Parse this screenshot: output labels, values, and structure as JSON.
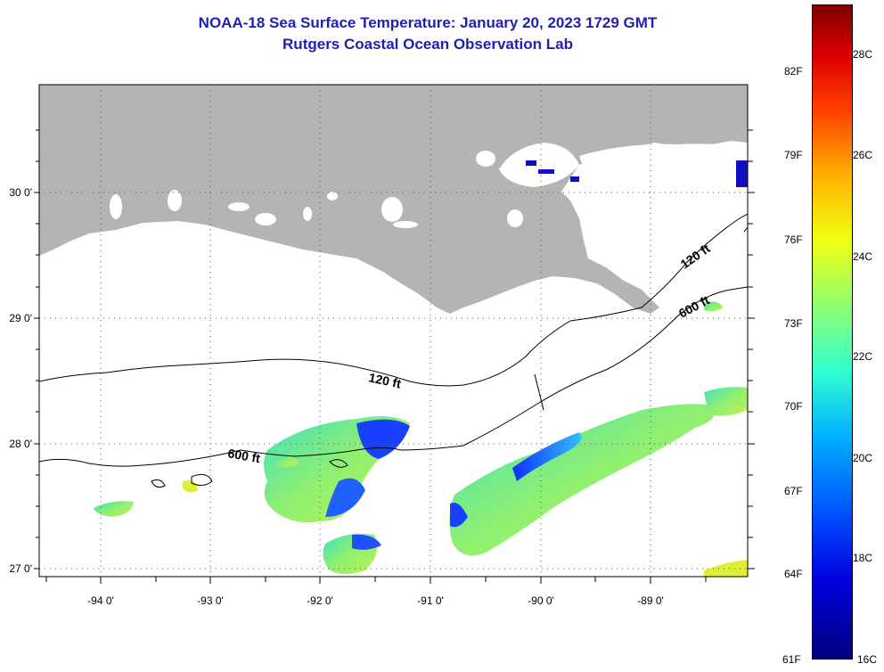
{
  "title": {
    "line1": "NOAA-18 Sea Surface Temperature:  January 20, 2023 1729 GMT",
    "line2": "Rutgers Coastal Ocean Observation Lab"
  },
  "map": {
    "lat_labels": [
      "30 0'",
      "29 0'",
      "28 0'",
      "27 0'"
    ],
    "lon_labels": [
      "-94 0'",
      "-93 0'",
      "-92 0'",
      "-91 0'",
      "-90 0'",
      "-89 0'"
    ],
    "contour_labels": {
      "c120_a": "120 ft",
      "c120_b": "120 ft",
      "c600_a": "600 ft",
      "c600_b": "600 ft"
    },
    "colors": {
      "land": "#b4b4b4",
      "cloud": "#ffffff"
    }
  },
  "colorbar": {
    "fahrenheit": [
      "82F",
      "79F",
      "76F",
      "73F",
      "70F",
      "67F",
      "64F",
      "61F"
    ],
    "celsius": [
      "28C",
      "26C",
      "24C",
      "22C",
      "20C",
      "18C",
      "16C"
    ]
  }
}
